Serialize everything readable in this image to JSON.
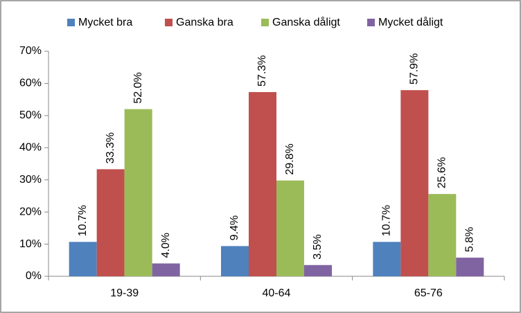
{
  "chart_data": {
    "type": "bar",
    "categories": [
      "19-39",
      "40-64",
      "65-76"
    ],
    "series": [
      {
        "name": "Mycket bra",
        "color": "#4f81bd",
        "values": [
          10.7,
          9.4,
          10.7
        ],
        "value_labels": [
          "10.7%",
          "9.4%",
          "10.7%"
        ]
      },
      {
        "name": "Ganska bra",
        "color": "#c0504d",
        "values": [
          33.3,
          57.3,
          57.9
        ],
        "value_labels": [
          "33.3%",
          "57.3%",
          "57.9%"
        ]
      },
      {
        "name": "Ganska dåligt",
        "color": "#9bbb59",
        "values": [
          52.0,
          29.8,
          25.6
        ],
        "value_labels": [
          "52.0%",
          "29.8%",
          "25.6%"
        ]
      },
      {
        "name": "Mycket dåligt",
        "color": "#8064a2",
        "values": [
          4.0,
          3.5,
          5.8
        ],
        "value_labels": [
          "4.0%",
          "3.5%",
          "5.8%"
        ]
      }
    ],
    "ylim": [
      0,
      70
    ],
    "yticks": [
      {
        "value": 0,
        "label": "0%"
      },
      {
        "value": 10,
        "label": "10%"
      },
      {
        "value": 20,
        "label": "20%"
      },
      {
        "value": 30,
        "label": "30%"
      },
      {
        "value": 40,
        "label": "40%"
      },
      {
        "value": 50,
        "label": "50%"
      },
      {
        "value": 60,
        "label": "60%"
      },
      {
        "value": 70,
        "label": "70%"
      }
    ],
    "grid": false,
    "legend": "top"
  }
}
